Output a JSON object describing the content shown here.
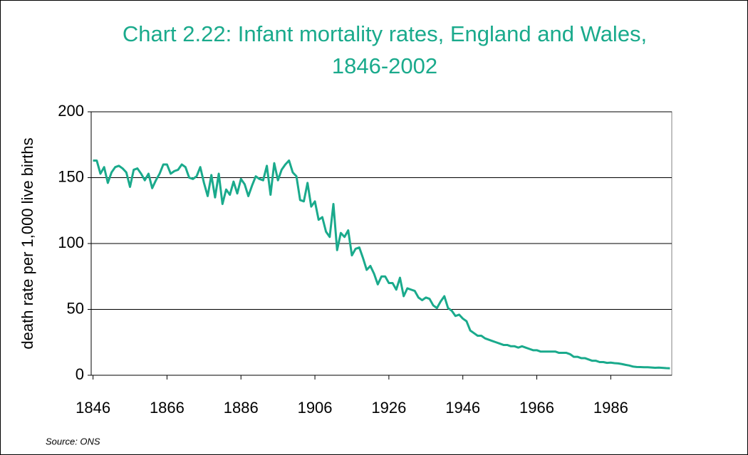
{
  "chart_data": {
    "type": "line",
    "title": [
      "Chart 2.22: Infant mortality rates, England and Wales,",
      "1846-2002"
    ],
    "y_label": "death rate per 1,000 live births",
    "source": "Source: ONS",
    "categories": [
      "1846",
      null,
      null,
      null,
      null,
      null,
      null,
      null,
      null,
      null,
      null,
      null,
      null,
      null,
      null,
      null,
      null,
      null,
      null,
      null,
      "1866",
      null,
      null,
      null,
      null,
      null,
      null,
      null,
      null,
      null,
      null,
      null,
      null,
      null,
      null,
      null,
      null,
      null,
      null,
      null,
      "1886",
      null,
      null,
      null,
      null,
      null,
      null,
      null,
      null,
      null,
      null,
      null,
      null,
      null,
      null,
      null,
      null,
      null,
      null,
      null,
      "1906",
      null,
      null,
      null,
      null,
      null,
      null,
      null,
      null,
      null,
      null,
      null,
      null,
      null,
      null,
      null,
      null,
      null,
      null,
      null,
      "1926",
      null,
      null,
      null,
      null,
      null,
      null,
      null,
      null,
      null,
      null,
      null,
      null,
      null,
      null,
      null,
      null,
      null,
      null,
      null,
      "1946",
      null,
      null,
      null,
      null,
      null,
      null,
      null,
      null,
      null,
      null,
      null,
      null,
      null,
      null,
      null,
      null,
      null,
      null,
      null,
      "1966",
      null,
      null,
      null,
      null,
      null,
      null,
      null,
      null,
      null,
      null,
      null,
      null,
      null,
      null,
      null,
      null,
      null,
      null,
      null,
      "1986",
      null,
      null,
      null,
      null,
      null,
      null,
      null,
      null,
      null,
      null,
      null,
      null,
      null,
      null,
      null,
      null
    ],
    "series": [
      {
        "name": "Infant mortality rate",
        "color": "#1aaa8c",
        "values": [
          163,
          163,
          153,
          158,
          146,
          154,
          158,
          159,
          157,
          154,
          143,
          156,
          157,
          153,
          148,
          153,
          142,
          148,
          153,
          160,
          160,
          153,
          155,
          156,
          160,
          158,
          150,
          149,
          151,
          158,
          146,
          136,
          152,
          135,
          153,
          130,
          141,
          137,
          147,
          138,
          149,
          145,
          136,
          144,
          151,
          149,
          148,
          159,
          137,
          161,
          148,
          156,
          160,
          163,
          154,
          151,
          133,
          132,
          146,
          128,
          132,
          118,
          120,
          109,
          105,
          130,
          95,
          108,
          105,
          110,
          91,
          96,
          97,
          89,
          80,
          83,
          77,
          69,
          75,
          75,
          70,
          70,
          65,
          74,
          60,
          66,
          65,
          64,
          59,
          57,
          59,
          58,
          53,
          51,
          56,
          60,
          51,
          49,
          45,
          46,
          43,
          41,
          34,
          32,
          30,
          30,
          28,
          27,
          26,
          25,
          24,
          23,
          23,
          22,
          22,
          21,
          22,
          21,
          20,
          19,
          19,
          18,
          18,
          18,
          18,
          18,
          17,
          17,
          17,
          16,
          14,
          14,
          13,
          13,
          12,
          11,
          11,
          10,
          10,
          9.4,
          9.6,
          9.2,
          9,
          8.5,
          7.9,
          7.4,
          6.6,
          6.3,
          6.2,
          6.1,
          6.1,
          5.9,
          5.7,
          5.8,
          5.6,
          5.4,
          5.3
        ]
      }
    ],
    "ylim": [
      0,
      200
    ],
    "yticks": [
      0,
      50,
      100,
      150,
      200
    ],
    "grid": true
  }
}
